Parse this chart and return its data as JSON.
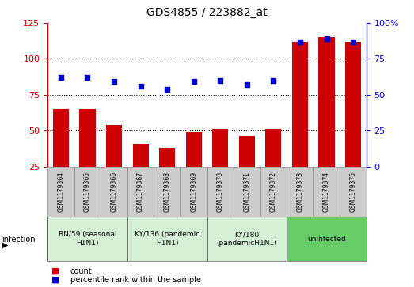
{
  "title": "GDS4855 / 223882_at",
  "samples": [
    "GSM1179364",
    "GSM1179365",
    "GSM1179366",
    "GSM1179367",
    "GSM1179368",
    "GSM1179369",
    "GSM1179370",
    "GSM1179371",
    "GSM1179372",
    "GSM1179373",
    "GSM1179374",
    "GSM1179375"
  ],
  "counts": [
    65,
    65,
    54,
    41,
    38,
    49,
    51,
    46,
    51,
    112,
    115,
    112
  ],
  "percentiles": [
    62,
    62,
    59,
    56,
    54,
    59,
    60,
    57,
    60,
    87,
    89,
    87
  ],
  "groups": [
    {
      "label": "BN/59 (seasonal\nH1N1)",
      "start": 0,
      "end": 3,
      "color": "#d5f0d5"
    },
    {
      "label": "KY/136 (pandemic\nH1N1)",
      "start": 3,
      "end": 6,
      "color": "#d5f0d5"
    },
    {
      "label": "KY/180\n(pandemicH1N1)",
      "start": 6,
      "end": 9,
      "color": "#d5f0d5"
    },
    {
      "label": "uninfected",
      "start": 9,
      "end": 12,
      "color": "#66cc66"
    }
  ],
  "ylim_left": [
    25,
    125
  ],
  "ylim_right": [
    0,
    100
  ],
  "yticks_left": [
    25,
    50,
    75,
    100,
    125
  ],
  "yticks_right": [
    0,
    25,
    50,
    75,
    100
  ],
  "ytick_labels_right": [
    "0",
    "25",
    "50",
    "75",
    "100%"
  ],
  "bar_color": "#cc0000",
  "dot_color": "#0000cc",
  "bg_color": "#ffffff",
  "bar_width": 0.6,
  "left_axis_color": "#cc0000",
  "right_axis_color": "#0000cc",
  "sample_box_color": "#cccccc",
  "figsize": [
    5.23,
    3.63
  ],
  "dpi": 100
}
